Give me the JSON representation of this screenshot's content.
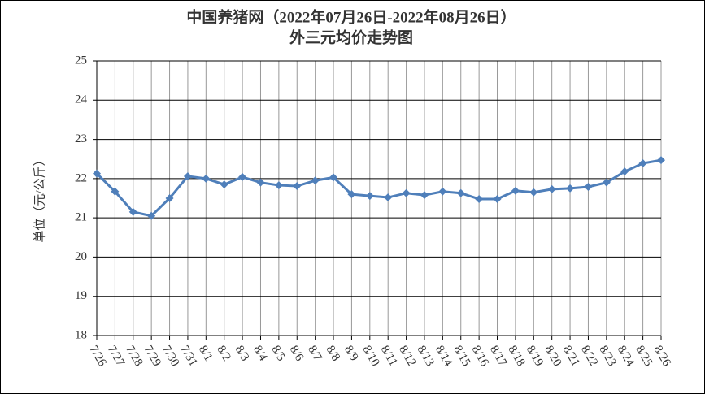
{
  "chart_data": {
    "type": "line",
    "title": "中国养猪网（2022年07月26日-2022年08月26日）",
    "subtitle": "外三元均价走势图",
    "y_label": "单位（元/公斤）",
    "categories": [
      "7/26",
      "7/27",
      "7/28",
      "7/29",
      "7/30",
      "7/31",
      "8/1",
      "8/2",
      "8/3",
      "8/4",
      "8/5",
      "8/6",
      "8/7",
      "8/8",
      "8/9",
      "8/10",
      "8/11",
      "8/12",
      "8/13",
      "8/14",
      "8/15",
      "8/16",
      "8/17",
      "8/18",
      "8/19",
      "8/20",
      "8/21",
      "8/22",
      "8/23",
      "8/24",
      "8/25",
      "8/26"
    ],
    "values": [
      22.13,
      21.67,
      21.15,
      21.05,
      21.5,
      22.06,
      22.0,
      21.85,
      22.04,
      21.9,
      21.83,
      21.81,
      21.95,
      22.03,
      21.6,
      21.56,
      21.52,
      21.63,
      21.58,
      21.67,
      21.63,
      21.48,
      21.48,
      21.69,
      21.65,
      21.73,
      21.75,
      21.79,
      21.9,
      22.18,
      22.39,
      22.47
    ],
    "color": "#4f7fba",
    "ylim": [
      18,
      25
    ],
    "yticks": [
      18,
      19,
      20,
      21,
      22,
      23,
      24,
      25
    ],
    "grid": true
  }
}
